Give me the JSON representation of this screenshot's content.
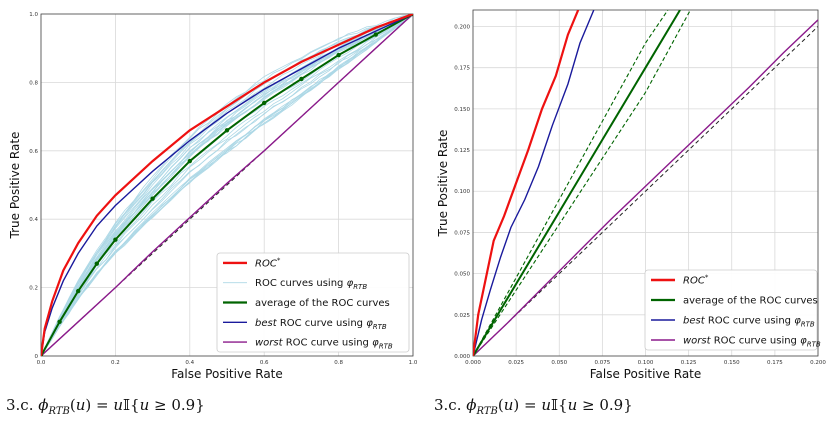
{
  "chart_data": [
    {
      "type": "line",
      "xlabel": "False Positive Rate",
      "ylabel": "True Positive Rate",
      "xlim": [
        0,
        1
      ],
      "ylim": [
        0,
        1
      ],
      "xticks": [
        "0.0",
        "0.2",
        "0.4",
        "0.6",
        "0.8",
        "1.0"
      ],
      "yticks": [
        "0",
        "0.2",
        "0.4",
        "0.6",
        "0.8",
        "1.0"
      ],
      "grid": true,
      "legend_position": "lower-right",
      "legend": [
        {
          "label": "ROC*",
          "color": "#ee1111"
        },
        {
          "label": "ROC curves using φRTB",
          "color": "#add8e6"
        },
        {
          "label": "average of the ROC curves",
          "color": "#006400"
        },
        {
          "label": "best ROC curve using φRTB",
          "color": "#1a1a9c"
        },
        {
          "label": "worst ROC curve using φRTB",
          "color": "#8b1a8b"
        }
      ],
      "caption": "3.c. ϕRTB(u) = u𝕀{u ≥ 0.9}",
      "series": [
        {
          "role": "roc-star",
          "color": "#ee1111",
          "x": [
            0,
            0.01,
            0.03,
            0.06,
            0.1,
            0.15,
            0.2,
            0.3,
            0.4,
            0.5,
            0.6,
            0.7,
            0.8,
            0.9,
            1
          ],
          "y": [
            0,
            0.08,
            0.16,
            0.25,
            0.33,
            0.41,
            0.47,
            0.57,
            0.66,
            0.73,
            0.8,
            0.86,
            0.91,
            0.96,
            1
          ]
        },
        {
          "role": "best",
          "color": "#1a1a9c",
          "x": [
            0,
            0.01,
            0.03,
            0.06,
            0.1,
            0.15,
            0.2,
            0.3,
            0.4,
            0.5,
            0.6,
            0.7,
            0.8,
            0.9,
            1
          ],
          "y": [
            0,
            0.07,
            0.14,
            0.22,
            0.3,
            0.38,
            0.44,
            0.54,
            0.63,
            0.71,
            0.78,
            0.84,
            0.9,
            0.95,
            1
          ]
        },
        {
          "role": "average",
          "color": "#006400",
          "x": [
            0,
            0.05,
            0.1,
            0.15,
            0.2,
            0.3,
            0.4,
            0.5,
            0.6,
            0.7,
            0.8,
            0.9,
            1
          ],
          "y": [
            0,
            0.1,
            0.19,
            0.27,
            0.34,
            0.46,
            0.57,
            0.66,
            0.74,
            0.81,
            0.88,
            0.94,
            1
          ]
        },
        {
          "role": "worst",
          "color": "#8b1a8b",
          "x": [
            0,
            0.1,
            0.2,
            0.3,
            0.4,
            0.5,
            0.6,
            0.7,
            0.8,
            0.9,
            1
          ],
          "y": [
            0,
            0.1,
            0.2,
            0.305,
            0.405,
            0.505,
            0.6,
            0.7,
            0.8,
            0.9,
            1
          ]
        }
      ],
      "diagonal": true
    },
    {
      "type": "line",
      "xlabel": "False Positive Rate",
      "ylabel": "True Positive Rate",
      "xlim": [
        0,
        0.2
      ],
      "ylim": [
        0,
        0.21
      ],
      "xticks": [
        "0.000",
        "0.025",
        "0.050",
        "0.075",
        "0.100",
        "0.125",
        "0.150",
        "0.175",
        "0.200"
      ],
      "yticks": [
        "0.000",
        "0.025",
        "0.050",
        "0.075",
        "0.100",
        "0.125",
        "0.150",
        "0.175",
        "0.200"
      ],
      "grid": true,
      "legend_position": "lower-right",
      "legend": [
        {
          "label": "ROC*",
          "color": "#ee1111"
        },
        {
          "label": "average of the ROC curves",
          "color": "#006400"
        },
        {
          "label": "best ROC curve using φRTB",
          "color": "#1a1a9c"
        },
        {
          "label": "worst ROC curve using φRTB",
          "color": "#8b1a8b"
        }
      ],
      "caption": "3.c. ϕRTB(u) = u𝕀{u ≥ 0.9}",
      "series": [
        {
          "role": "roc-star",
          "color": "#ee1111",
          "x": [
            0,
            0.003,
            0.007,
            0.012,
            0.018,
            0.025,
            0.032,
            0.04,
            0.048,
            0.055,
            0.061
          ],
          "y": [
            0,
            0.025,
            0.045,
            0.07,
            0.085,
            0.105,
            0.125,
            0.15,
            0.17,
            0.195,
            0.21
          ]
        },
        {
          "role": "best",
          "color": "#1a1a9c",
          "x": [
            0,
            0.005,
            0.01,
            0.016,
            0.022,
            0.03,
            0.038,
            0.046,
            0.055,
            0.062,
            0.07
          ],
          "y": [
            0,
            0.022,
            0.04,
            0.06,
            0.078,
            0.095,
            0.115,
            0.14,
            0.165,
            0.19,
            0.21
          ]
        },
        {
          "role": "average",
          "color": "#006400",
          "x": [
            0,
            0.02,
            0.04,
            0.06,
            0.08,
            0.1,
            0.12
          ],
          "y": [
            0,
            0.035,
            0.07,
            0.105,
            0.14,
            0.175,
            0.21
          ]
        },
        {
          "role": "average-upper",
          "color": "#006400",
          "x": [
            0,
            0.02,
            0.04,
            0.06,
            0.08,
            0.1,
            0.113
          ],
          "y": [
            0,
            0.038,
            0.076,
            0.114,
            0.152,
            0.19,
            0.21
          ]
        },
        {
          "role": "average-lower",
          "color": "#006400",
          "x": [
            0,
            0.02,
            0.04,
            0.06,
            0.08,
            0.1,
            0.126
          ],
          "y": [
            0,
            0.032,
            0.064,
            0.096,
            0.128,
            0.16,
            0.21
          ]
        },
        {
          "role": "worst",
          "color": "#8b1a8b",
          "x": [
            0,
            0.02,
            0.04,
            0.06,
            0.08,
            0.1,
            0.12,
            0.14,
            0.16,
            0.18,
            0.2
          ],
          "y": [
            0,
            0.02,
            0.041,
            0.062,
            0.083,
            0.103,
            0.123,
            0.143,
            0.163,
            0.184,
            0.204
          ]
        }
      ],
      "diagonal": true
    }
  ]
}
